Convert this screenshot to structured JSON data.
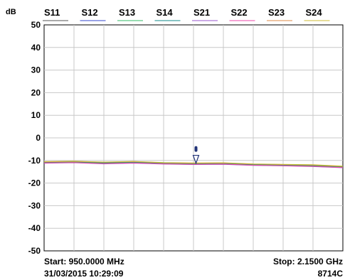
{
  "chart_data": {
    "type": "line",
    "unit_label": "dB",
    "ylim": [
      -50,
      50
    ],
    "y_ticks": [
      "50",
      "40",
      "30",
      "20",
      "10",
      "0",
      "-10",
      "-20",
      "-30",
      "-40",
      "-50"
    ],
    "x_range_mhz": [
      950,
      2150
    ],
    "x_divisions": 10,
    "grid": true,
    "legend_position": "top",
    "series": [
      {
        "name": "S11",
        "color": "#555555",
        "x": [
          950,
          1070,
          1190,
          1310,
          1430,
          1550,
          1670,
          1790,
          1910,
          2030,
          2150
        ],
        "values": [
          -10.8,
          -10.6,
          -11.0,
          -10.7,
          -11.2,
          -11.4,
          -11.3,
          -11.8,
          -12.0,
          -12.2,
          -12.8
        ]
      },
      {
        "name": "S12",
        "color": "#3344cc",
        "x": [
          950,
          1070,
          1190,
          1310,
          1430,
          1550,
          1670,
          1790,
          1910,
          2030,
          2150
        ],
        "values": [
          -11.0,
          -10.8,
          -11.3,
          -11.0,
          -11.4,
          -11.6,
          -11.5,
          -12.0,
          -12.2,
          -12.5,
          -13.0
        ]
      },
      {
        "name": "S13",
        "color": "#33bb66",
        "x": [
          950,
          1070,
          1190,
          1310,
          1430,
          1550,
          1670,
          1790,
          1910,
          2030,
          2150
        ],
        "values": [
          -10.9,
          -10.7,
          -11.2,
          -10.8,
          -11.3,
          -11.5,
          -11.4,
          -11.9,
          -12.1,
          -12.3,
          -12.9
        ]
      },
      {
        "name": "S14",
        "color": "#118888",
        "x": [
          950,
          1070,
          1190,
          1310,
          1430,
          1550,
          1670,
          1790,
          1910,
          2030,
          2150
        ],
        "values": [
          -10.7,
          -10.5,
          -10.9,
          -10.6,
          -11.1,
          -11.3,
          -11.2,
          -11.7,
          -11.9,
          -12.1,
          -12.7
        ]
      },
      {
        "name": "S21",
        "color": "#9955cc",
        "x": [
          950,
          1070,
          1190,
          1310,
          1430,
          1550,
          1670,
          1790,
          1910,
          2030,
          2150
        ],
        "values": [
          -11.2,
          -11.0,
          -11.5,
          -11.2,
          -11.6,
          -11.8,
          -11.7,
          -12.2,
          -12.4,
          -12.7,
          -13.2
        ]
      },
      {
        "name": "S22",
        "color": "#ee44aa",
        "x": [
          950,
          1070,
          1190,
          1310,
          1430,
          1550,
          1670,
          1790,
          1910,
          2030,
          2150
        ],
        "values": [
          -11.1,
          -10.9,
          -11.4,
          -11.1,
          -11.5,
          -11.7,
          -11.6,
          -12.1,
          -12.3,
          -12.6,
          -13.1
        ]
      },
      {
        "name": "S23",
        "color": "#dd8844",
        "x": [
          950,
          1070,
          1190,
          1310,
          1430,
          1550,
          1670,
          1790,
          1910,
          2030,
          2150
        ],
        "values": [
          -10.6,
          -10.4,
          -10.8,
          -10.5,
          -11.0,
          -11.2,
          -11.1,
          -11.6,
          -11.8,
          -12.0,
          -12.6
        ]
      },
      {
        "name": "S24",
        "color": "#ccbb33",
        "x": [
          950,
          1070,
          1190,
          1310,
          1430,
          1550,
          1670,
          1790,
          1910,
          2030,
          2150
        ],
        "values": [
          -10.5,
          -10.3,
          -10.7,
          -10.4,
          -10.9,
          -11.1,
          -11.0,
          -11.5,
          -11.7,
          -11.9,
          -12.5
        ]
      }
    ],
    "marker": {
      "x_mhz": 1560,
      "y": -11.5,
      "color": "#223377"
    },
    "start_label": "Start: 950.0000 MHz",
    "stop_label": "Stop: 2.1500 GHz",
    "timestamp": "31/03/2015 10:29:09",
    "instrument": "8714C"
  }
}
